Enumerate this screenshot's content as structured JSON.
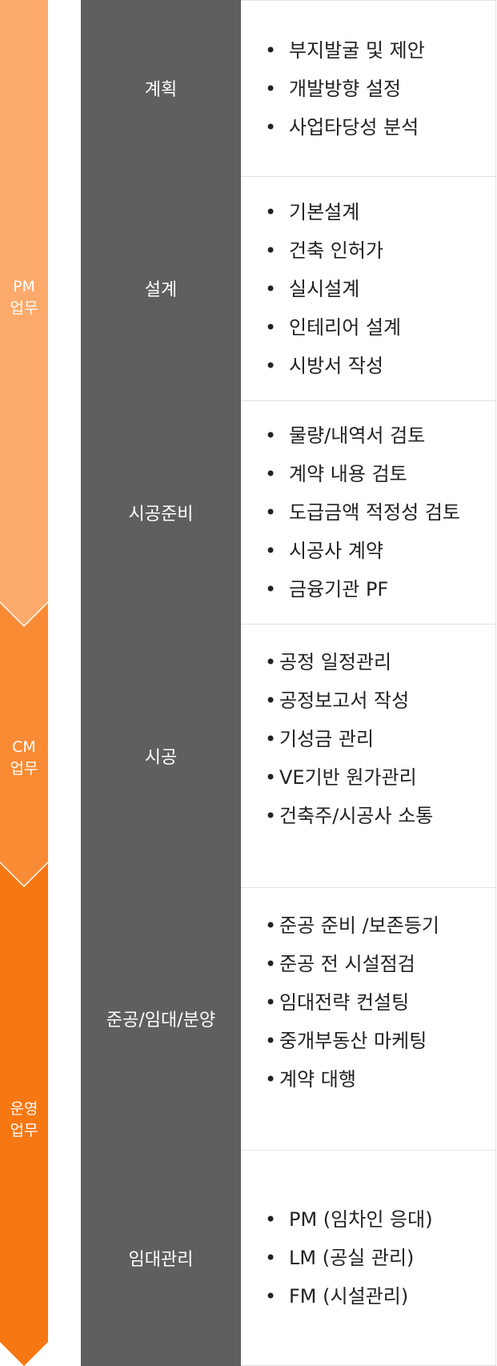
{
  "colors": {
    "pm": "#fcaa6b",
    "cm": "#f98b35",
    "op": "#f77712",
    "category_bg": "#5f5f5f",
    "border": "#e2e2e2"
  },
  "phases": [
    {
      "id": "pm",
      "label": "PM\n업무"
    },
    {
      "id": "cm",
      "label": "CM\n업무"
    },
    {
      "id": "op",
      "label": "운영\n업무"
    }
  ],
  "bullet": "•",
  "rows": [
    {
      "category": "계획",
      "items": [
        "부지발굴 및 제안",
        "개발방향 설정",
        "사업타당성 분석"
      ]
    },
    {
      "category": "설계",
      "items": [
        "기본설계",
        "건축 인허가",
        "실시설계",
        "인테리어 설계",
        "시방서 작성"
      ]
    },
    {
      "category": "시공준비",
      "items": [
        "물량/내역서 검토",
        "계약 내용 검토",
        "도급금액 적정성 검토",
        "시공사 계약",
        "금융기관 PF"
      ]
    },
    {
      "category": "시공",
      "items": [
        "공정 일정관리",
        "공정보고서 작성",
        "기성금 관리",
        "VE기반 원가관리",
        "건축주/시공사 소통"
      ]
    },
    {
      "category": "준공/임대/분양",
      "items": [
        "준공 준비 /보존등기",
        "준공 전 시설점검",
        "임대전략 컨설팅",
        "중개부동산 마케팅",
        "계약 대행"
      ]
    },
    {
      "category": "임대관리",
      "items": [
        "PM (임차인 응대)",
        "LM (공실 관리)",
        "FM (시설관리)"
      ]
    }
  ]
}
